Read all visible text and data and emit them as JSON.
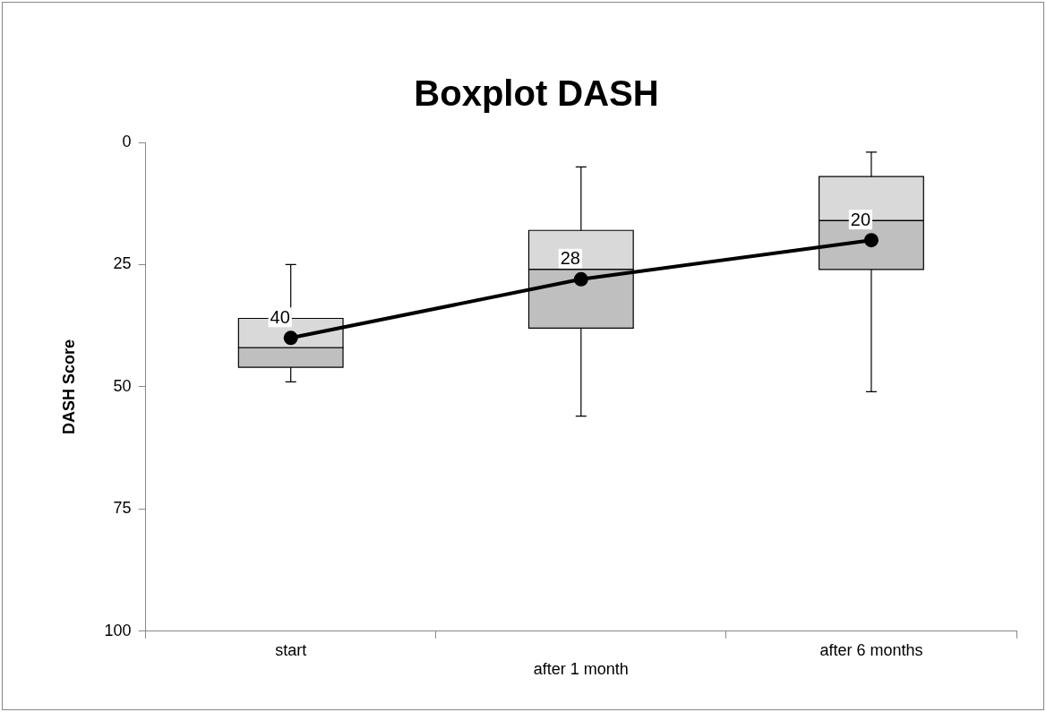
{
  "chart_data": {
    "type": "box",
    "title": "Boxplot DASH",
    "ylabel": "DASH Score",
    "categories": [
      "start",
      "after 1 month",
      "after 6 months"
    ],
    "ylim": [
      100,
      0
    ],
    "yticks": [
      0,
      25,
      50,
      75,
      100
    ],
    "grid": false,
    "legend": false,
    "series": [
      {
        "color": "#d9d9d9",
        "boxes": [
          {
            "low": 25,
            "q1": 36,
            "median": 42,
            "q3": 46,
            "high": 49
          },
          {
            "low": 5,
            "q1": 18,
            "median": 26,
            "q3": 38,
            "high": 56
          },
          {
            "low": 2,
            "q1": 7,
            "median": 16,
            "q3": 26,
            "high": 51
          }
        ]
      },
      {
        "type": "line",
        "color": "#000000",
        "values": [
          40,
          28,
          20
        ],
        "marker": "circle",
        "line_style": "solid",
        "data_labels": true
      }
    ]
  }
}
